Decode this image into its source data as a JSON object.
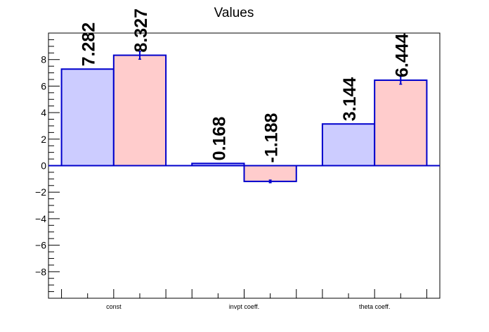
{
  "chart_data": {
    "type": "bar",
    "title": "Values",
    "categories": [
      "const",
      "invpt coeff.",
      "theta coeff."
    ],
    "series": [
      {
        "values": [
          7.282,
          0.168,
          3.144
        ],
        "color": "#ccccff",
        "edge": "#0000cc"
      },
      {
        "values": [
          8.327,
          -1.188,
          6.444
        ],
        "color": "#ffcccc",
        "edge": "#0000cc",
        "errors": [
          0.3,
          0.1,
          0.3
        ]
      }
    ],
    "value_labels": [
      [
        "7.282",
        "0.168",
        "3.144"
      ],
      [
        "8.327",
        "-1.188",
        "6.444"
      ]
    ],
    "ylim": [
      -10,
      10
    ],
    "yticks": [
      -8,
      -6,
      -4,
      -2,
      0,
      2,
      4,
      6,
      8
    ],
    "ytick_labels": [
      "−8",
      "−6",
      "−4",
      "−2",
      "0",
      "2",
      "4",
      "6",
      "8"
    ],
    "grid": false,
    "legend": "none"
  }
}
